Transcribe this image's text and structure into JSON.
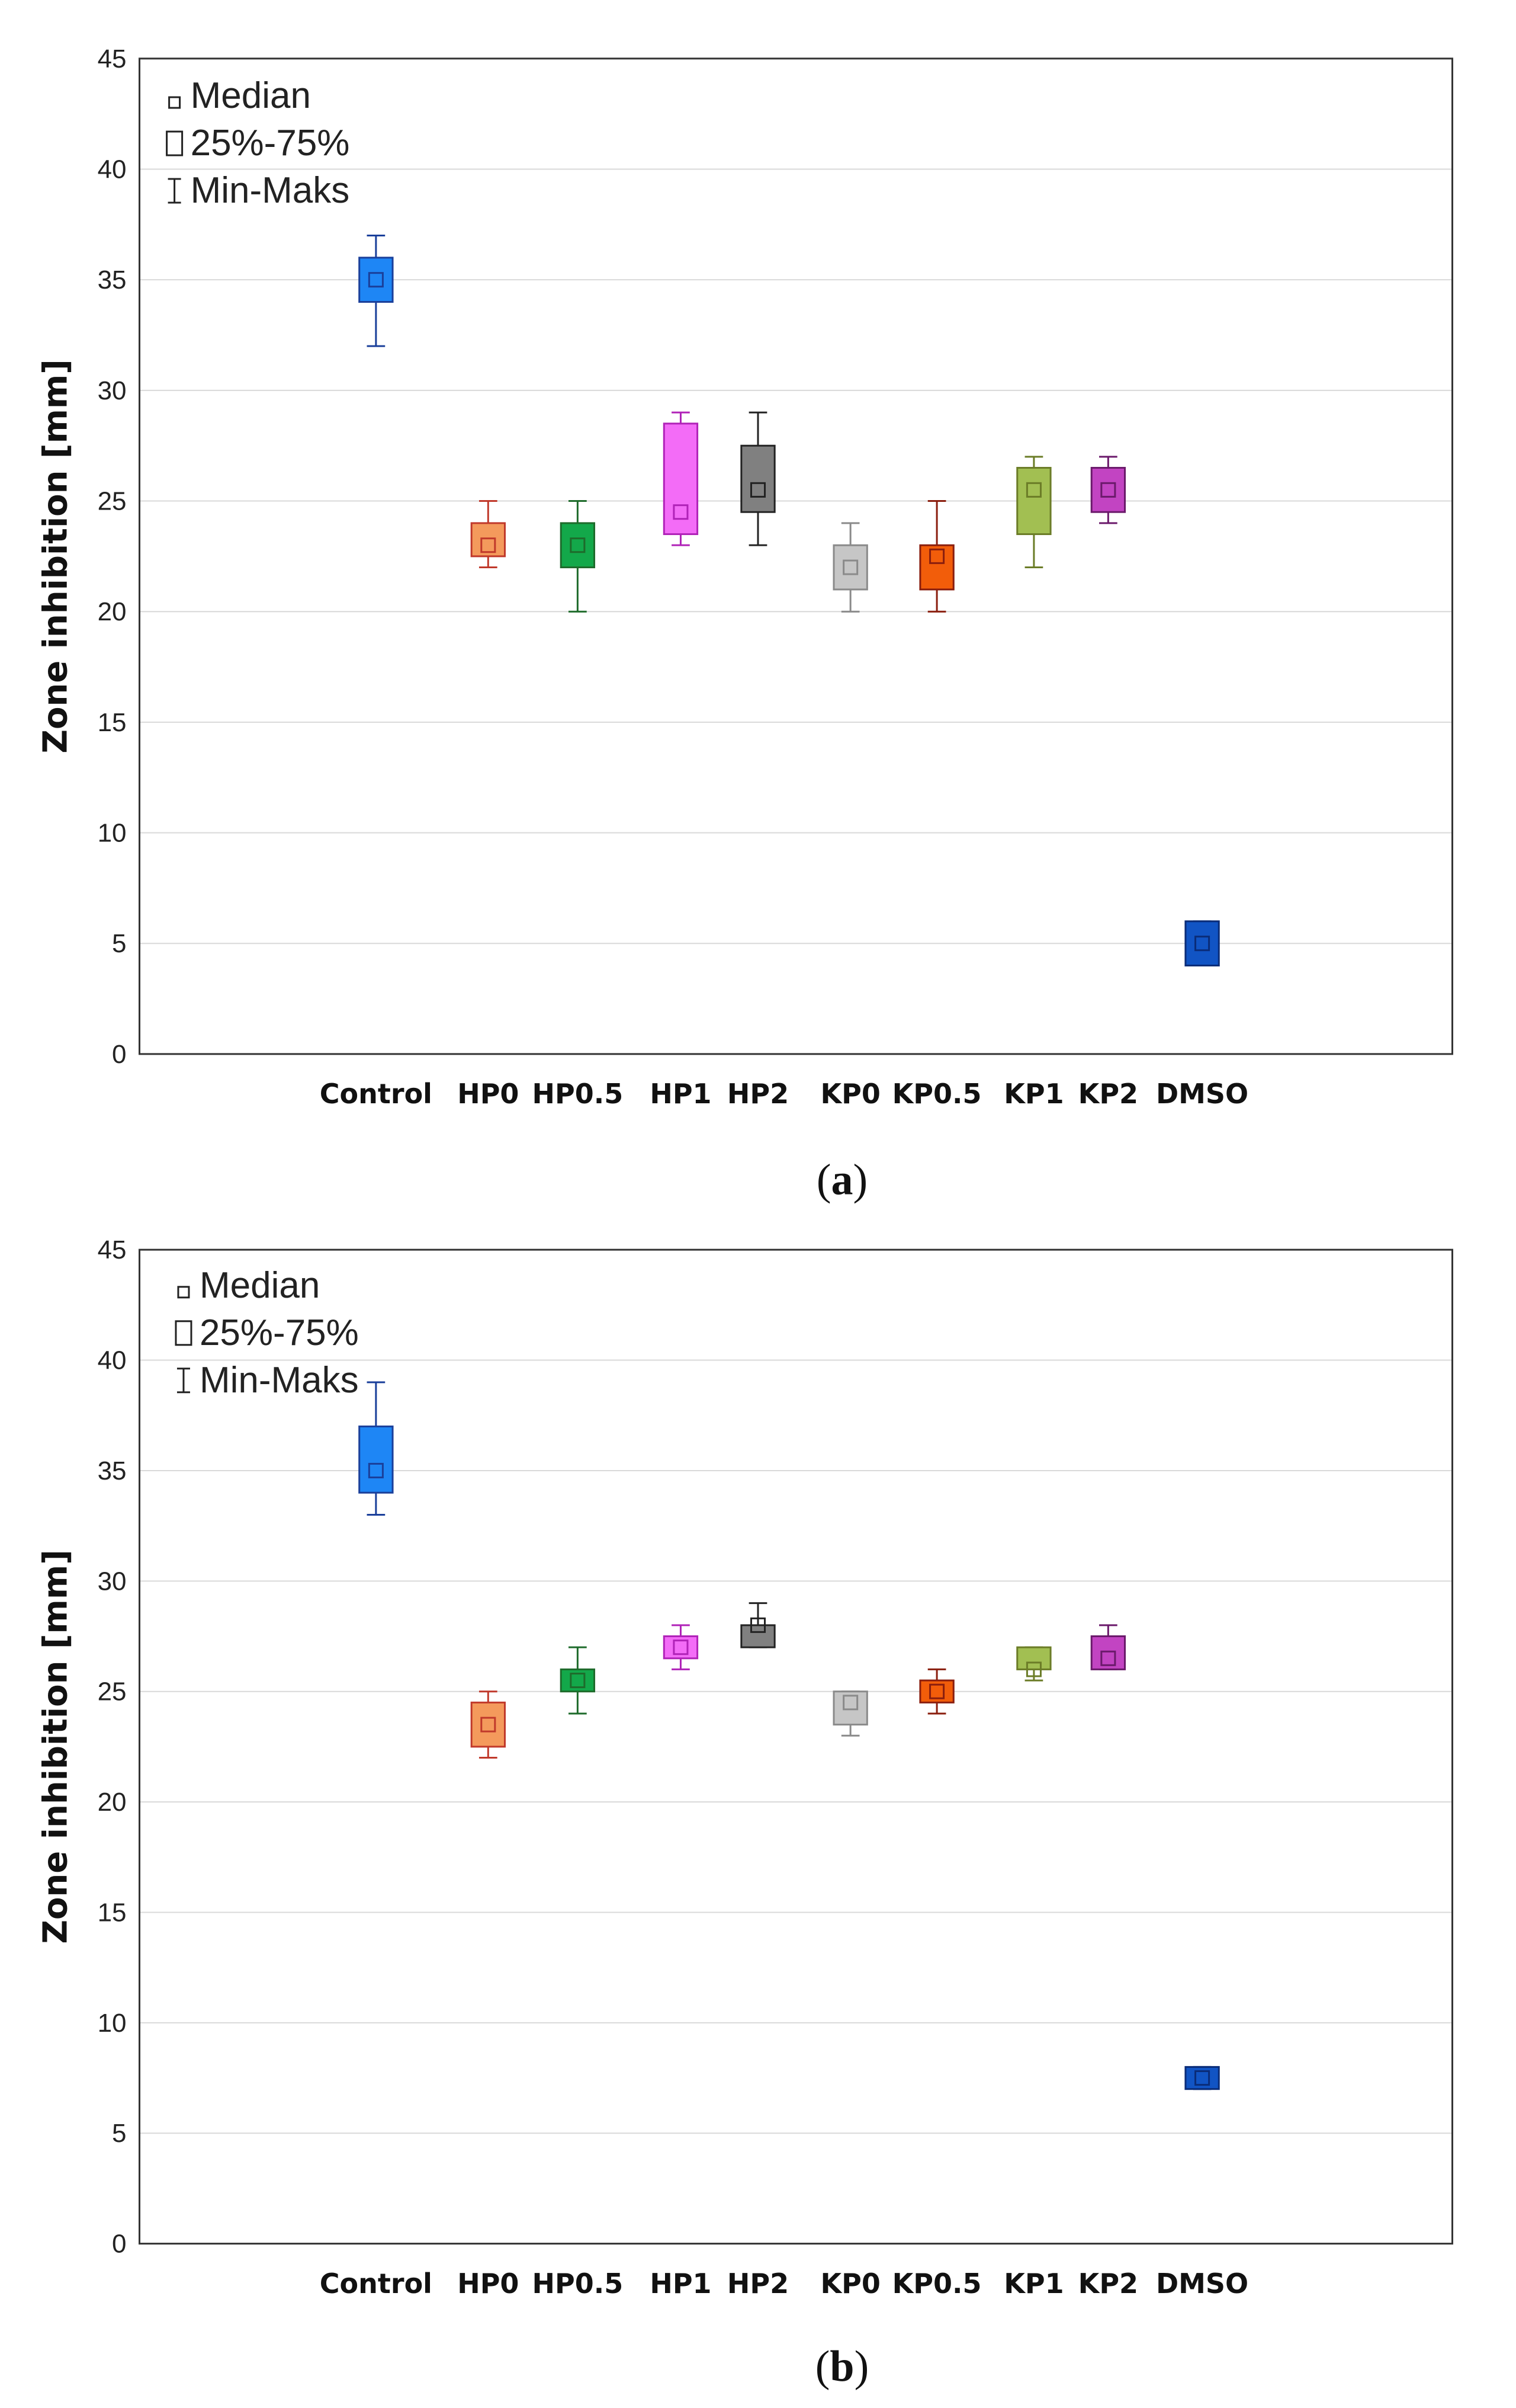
{
  "chart_data": [
    {
      "type": "boxplot",
      "panel": "a",
      "caption_open": "(",
      "caption_letter": "a",
      "caption_close": ")",
      "ylabel": "Zone inhibition [mm]",
      "xlabel": "",
      "ylim": [
        0,
        45
      ],
      "yticks": [
        "0",
        "5",
        "10",
        "15",
        "20",
        "25",
        "30",
        "35",
        "40",
        "45"
      ],
      "grid": true,
      "legend": {
        "position": "top-left",
        "entries": [
          "Median",
          "25%-75%",
          "Min-Maks"
        ]
      },
      "categories": [
        "Control",
        "HP0",
        "HP0.5",
        "HP1",
        "HP2",
        "KP0",
        "KP0.5",
        "KP1",
        "KP2",
        "DMSO"
      ],
      "series": [
        {
          "name": "Control",
          "color": "#1e86f5",
          "stroke": "#1a3f9a",
          "min": 32,
          "q1": 34,
          "median": 35,
          "q3": 36,
          "max": 37
        },
        {
          "name": "HP0",
          "color": "#f49a5c",
          "stroke": "#c0392b",
          "min": 22,
          "q1": 22.5,
          "median": 23,
          "q3": 24,
          "max": 25
        },
        {
          "name": "HP0.5",
          "color": "#13a84a",
          "stroke": "#1e6b2b",
          "min": 20,
          "q1": 22,
          "median": 23,
          "q3": 24,
          "max": 25
        },
        {
          "name": "HP1",
          "color": "#f36cf7",
          "stroke": "#b023b8",
          "min": 23,
          "q1": 23.5,
          "median": 24.5,
          "q3": 28.5,
          "max": 29
        },
        {
          "name": "HP2",
          "color": "#808080",
          "stroke": "#222222",
          "min": 23,
          "q1": 24.5,
          "median": 25.5,
          "q3": 27.5,
          "max": 29
        },
        {
          "name": "KP0",
          "color": "#c6c6c6",
          "stroke": "#8a8a8a",
          "min": 20,
          "q1": 21,
          "median": 22,
          "q3": 23,
          "max": 24
        },
        {
          "name": "KP0.5",
          "color": "#f25d0a",
          "stroke": "#8a1e0e",
          "min": 20,
          "q1": 21,
          "median": 22.5,
          "q3": 23,
          "max": 25
        },
        {
          "name": "KP1",
          "color": "#a2bf52",
          "stroke": "#6b7c27",
          "min": 22,
          "q1": 23.5,
          "median": 25.5,
          "q3": 26.5,
          "max": 27
        },
        {
          "name": "KP2",
          "color": "#c244c2",
          "stroke": "#6b1a6b",
          "min": 24,
          "q1": 24.5,
          "median": 25.5,
          "q3": 26.5,
          "max": 27
        },
        {
          "name": "DMSO",
          "color": "#1154c4",
          "stroke": "#0a2c78",
          "min": 4,
          "q1": 4,
          "median": 5,
          "q3": 6,
          "max": 6
        }
      ]
    },
    {
      "type": "boxplot",
      "panel": "b",
      "caption_open": "(",
      "caption_letter": "b",
      "caption_close": ")",
      "ylabel": "Zone inhibition [mm]",
      "xlabel": "",
      "ylim": [
        0,
        45
      ],
      "yticks": [
        "0",
        "5",
        "10",
        "15",
        "20",
        "25",
        "30",
        "35",
        "40",
        "45"
      ],
      "grid": true,
      "legend": {
        "position": "top-left",
        "entries": [
          "Median",
          "25%-75%",
          "Min-Maks"
        ]
      },
      "categories": [
        "Control",
        "HP0",
        "HP0.5",
        "HP1",
        "HP2",
        "KP0",
        "KP0.5",
        "KP1",
        "KP2",
        "DMSO"
      ],
      "series": [
        {
          "name": "Control",
          "color": "#1e86f5",
          "stroke": "#1a3f9a",
          "min": 33,
          "q1": 34,
          "median": 35,
          "q3": 37,
          "max": 39
        },
        {
          "name": "HP0",
          "color": "#f49a5c",
          "stroke": "#c0392b",
          "min": 22,
          "q1": 22.5,
          "median": 23.5,
          "q3": 24.5,
          "max": 25
        },
        {
          "name": "HP0.5",
          "color": "#13a84a",
          "stroke": "#1e6b2b",
          "min": 24,
          "q1": 25,
          "median": 25.5,
          "q3": 26,
          "max": 27
        },
        {
          "name": "HP1",
          "color": "#f36cf7",
          "stroke": "#b023b8",
          "min": 26,
          "q1": 26.5,
          "median": 27,
          "q3": 27.5,
          "max": 28
        },
        {
          "name": "HP2",
          "color": "#808080",
          "stroke": "#222222",
          "min": 27,
          "q1": 27,
          "median": 28,
          "q3": 28,
          "max": 29
        },
        {
          "name": "KP0",
          "color": "#c6c6c6",
          "stroke": "#8a8a8a",
          "min": 23,
          "q1": 23.5,
          "median": 24.5,
          "q3": 25,
          "max": 25
        },
        {
          "name": "KP0.5",
          "color": "#f25d0a",
          "stroke": "#8a1e0e",
          "min": 24,
          "q1": 24.5,
          "median": 25,
          "q3": 25.5,
          "max": 26
        },
        {
          "name": "KP1",
          "color": "#a2bf52",
          "stroke": "#6b7c27",
          "min": 25.5,
          "q1": 26,
          "median": 26,
          "q3": 27,
          "max": 27
        },
        {
          "name": "KP2",
          "color": "#c244c2",
          "stroke": "#6b1a6b",
          "min": 26,
          "q1": 26,
          "median": 26.5,
          "q3": 27.5,
          "max": 28
        },
        {
          "name": "DMSO",
          "color": "#1154c4",
          "stroke": "#0a2c78",
          "min": 7,
          "q1": 7,
          "median": 7.5,
          "q3": 8,
          "max": 8
        }
      ]
    }
  ]
}
